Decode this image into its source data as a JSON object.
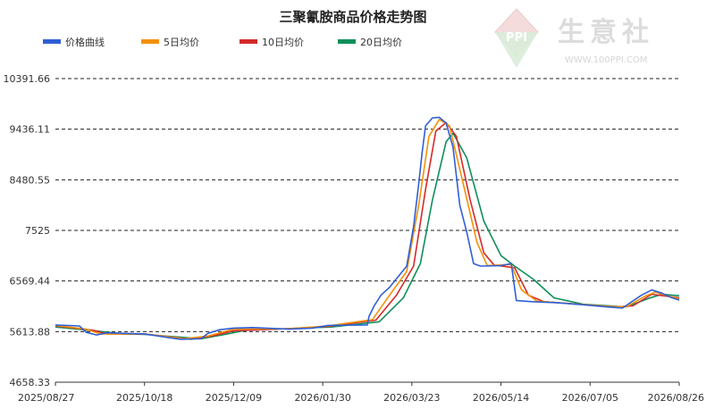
{
  "watermark": {
    "name": "生意社",
    "url": "WWW.100PPI.COM",
    "logo": "PPI"
  },
  "chart_data": {
    "type": "line",
    "title": "三聚氰胺商品价格走势图",
    "xlabel": "",
    "ylabel": "",
    "y_ticks": [
      "10391.66",
      "9436.11",
      "8480.55",
      "7525",
      "6569.44",
      "5613.88",
      "4658.33"
    ],
    "ylim": [
      4658.33,
      10391.66
    ],
    "x_ticks": [
      "2025/08/27",
      "2025/10/18",
      "2025/12/09",
      "2026/01/30",
      "2026/03/23",
      "2026/05/14",
      "2026/07/05",
      "2026/08/26"
    ],
    "x_range": [
      "2025/08/27",
      "2026/08/26"
    ],
    "grid": true,
    "legend_position": "top-left",
    "series": [
      {
        "name": "价格曲线",
        "color": "#2f5fd6",
        "points": [
          [
            "2025/08/27",
            5740
          ],
          [
            "2025/09/10",
            5720
          ],
          [
            "2025/09/14",
            5600
          ],
          [
            "2025/09/20",
            5550
          ],
          [
            "2025/09/26",
            5590
          ],
          [
            "2025/10/18",
            5570
          ],
          [
            "2025/11/01",
            5500
          ],
          [
            "2025/11/08",
            5470
          ],
          [
            "2025/11/20",
            5480
          ],
          [
            "2025/11/24",
            5580
          ],
          [
            "2025/12/01",
            5650
          ],
          [
            "2025/12/09",
            5680
          ],
          [
            "2025/12/20",
            5690
          ],
          [
            "2026/01/10",
            5660
          ],
          [
            "2026/01/24",
            5680
          ],
          [
            "2026/02/02",
            5730
          ],
          [
            "2026/02/25",
            5740
          ],
          [
            "2026/02/26",
            5900
          ],
          [
            "2026/03/01",
            6100
          ],
          [
            "2026/03/05",
            6300
          ],
          [
            "2026/03/10",
            6450
          ],
          [
            "2026/03/15",
            6650
          ],
          [
            "2026/03/20",
            6850
          ],
          [
            "2026/03/24",
            7600
          ],
          [
            "2026/03/27",
            8400
          ],
          [
            "2026/03/29",
            9000
          ],
          [
            "2026/03/31",
            9500
          ],
          [
            "2026/04/04",
            9650
          ],
          [
            "2026/04/08",
            9660
          ],
          [
            "2026/04/12",
            9550
          ],
          [
            "2026/04/16",
            9100
          ],
          [
            "2026/04/20",
            8000
          ],
          [
            "2026/04/24",
            7500
          ],
          [
            "2026/04/28",
            6900
          ],
          [
            "2026/05/02",
            6850
          ],
          [
            "2026/05/14",
            6860
          ],
          [
            "2026/05/20",
            6900
          ],
          [
            "2026/05/23",
            6200
          ],
          [
            "2026/06/01",
            6180
          ],
          [
            "2026/06/15",
            6160
          ],
          [
            "2026/07/01",
            6120
          ],
          [
            "2026/07/15",
            6080
          ],
          [
            "2026/07/24",
            6060
          ],
          [
            "2026/07/28",
            6150
          ],
          [
            "2026/08/04",
            6300
          ],
          [
            "2026/08/10",
            6400
          ],
          [
            "2026/08/16",
            6340
          ],
          [
            "2026/08/22",
            6250
          ],
          [
            "2026/08/26",
            6210
          ]
        ]
      },
      {
        "name": "5日均价",
        "color": "#f2910a",
        "points": [
          [
            "2025/08/27",
            5730
          ],
          [
            "2025/09/14",
            5660
          ],
          [
            "2025/09/22",
            5570
          ],
          [
            "2025/10/18",
            5570
          ],
          [
            "2025/11/10",
            5480
          ],
          [
            "2025/11/24",
            5530
          ],
          [
            "2025/12/09",
            5660
          ],
          [
            "2026/01/10",
            5670
          ],
          [
            "2026/02/02",
            5720
          ],
          [
            "2026/02/28",
            5840
          ],
          [
            "2026/03/10",
            6300
          ],
          [
            "2026/03/20",
            6750
          ],
          [
            "2026/03/27",
            8000
          ],
          [
            "2026/04/02",
            9300
          ],
          [
            "2026/04/08",
            9620
          ],
          [
            "2026/04/14",
            9500
          ],
          [
            "2026/04/22",
            8400
          ],
          [
            "2026/04/30",
            7300
          ],
          [
            "2026/05/06",
            6860
          ],
          [
            "2026/05/20",
            6880
          ],
          [
            "2026/05/26",
            6400
          ],
          [
            "2026/06/04",
            6190
          ],
          [
            "2026/07/15",
            6090
          ],
          [
            "2026/07/26",
            6080
          ],
          [
            "2026/08/06",
            6280
          ],
          [
            "2026/08/12",
            6360
          ],
          [
            "2026/08/26",
            6230
          ]
        ]
      },
      {
        "name": "10日均价",
        "color": "#d42a2a",
        "points": [
          [
            "2025/08/27",
            5720
          ],
          [
            "2025/09/18",
            5640
          ],
          [
            "2025/09/26",
            5570
          ],
          [
            "2025/10/18",
            5570
          ],
          [
            "2025/11/14",
            5470
          ],
          [
            "2025/11/28",
            5540
          ],
          [
            "2025/12/09",
            5630
          ],
          [
            "2026/01/10",
            5670
          ],
          [
            "2026/02/02",
            5710
          ],
          [
            "2026/03/02",
            5830
          ],
          [
            "2026/03/14",
            6300
          ],
          [
            "2026/03/24",
            6850
          ],
          [
            "2026/03/31",
            8300
          ],
          [
            "2026/04/06",
            9400
          ],
          [
            "2026/04/12",
            9560
          ],
          [
            "2026/04/18",
            9300
          ],
          [
            "2026/04/26",
            8100
          ],
          [
            "2026/05/04",
            7100
          ],
          [
            "2026/05/10",
            6870
          ],
          [
            "2026/05/22",
            6820
          ],
          [
            "2026/05/30",
            6300
          ],
          [
            "2026/06/08",
            6180
          ],
          [
            "2026/07/20",
            6080
          ],
          [
            "2026/07/30",
            6100
          ],
          [
            "2026/08/10",
            6320
          ],
          [
            "2026/08/26",
            6250
          ]
        ]
      },
      {
        "name": "20日均价",
        "color": "#0e8f5a",
        "points": [
          [
            "2025/08/27",
            5700
          ],
          [
            "2025/09/22",
            5620
          ],
          [
            "2025/10/06",
            5570
          ],
          [
            "2025/10/18",
            5560
          ],
          [
            "2025/11/20",
            5480
          ],
          [
            "2025/12/04",
            5560
          ],
          [
            "2025/12/16",
            5640
          ],
          [
            "2026/01/10",
            5670
          ],
          [
            "2026/02/04",
            5700
          ],
          [
            "2026/03/04",
            5800
          ],
          [
            "2026/03/18",
            6250
          ],
          [
            "2026/03/28",
            6900
          ],
          [
            "2026/04/04",
            8100
          ],
          [
            "2026/04/12",
            9200
          ],
          [
            "2026/04/16",
            9360
          ],
          [
            "2026/04/24",
            8900
          ],
          [
            "2026/05/04",
            7700
          ],
          [
            "2026/05/14",
            7050
          ],
          [
            "2026/05/22",
            6850
          ],
          [
            "2026/06/02",
            6600
          ],
          [
            "2026/06/14",
            6250
          ],
          [
            "2026/07/01",
            6130
          ],
          [
            "2026/07/26",
            6080
          ],
          [
            "2026/08/08",
            6240
          ],
          [
            "2026/08/16",
            6320
          ],
          [
            "2026/08/26",
            6290
          ]
        ]
      }
    ]
  }
}
